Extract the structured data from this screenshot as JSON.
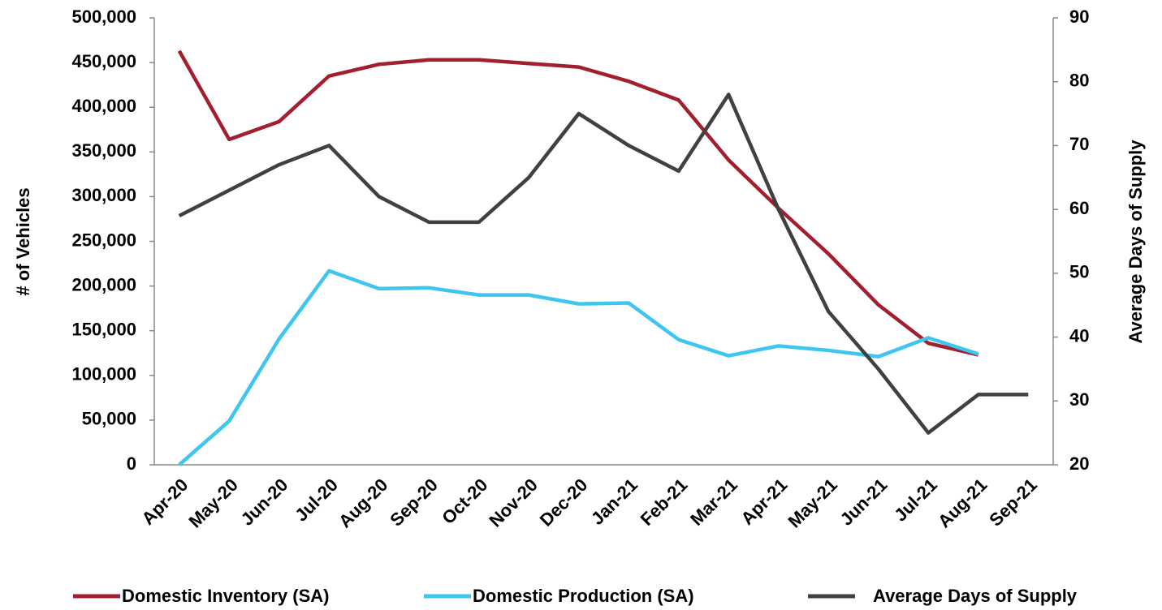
{
  "chart_data": {
    "type": "line",
    "categories": [
      "Apr-20",
      "May-20",
      "Jun-20",
      "Jul-20",
      "Aug-20",
      "Sep-20",
      "Oct-20",
      "Nov-20",
      "Dec-20",
      "Jan-21",
      "Feb-21",
      "Mar-21",
      "Apr-21",
      "May-21",
      "Jun-21",
      "Jul-21",
      "Aug-21",
      "Sep-21"
    ],
    "series": [
      {
        "name": "Domestic Inventory (SA)",
        "color": "#a21f2e",
        "values": [
          463000,
          364000,
          384000,
          435000,
          448000,
          453000,
          453000,
          449000,
          445000,
          429000,
          408000,
          341000,
          287000,
          236000,
          179000,
          136000,
          123000,
          null
        ]
      },
      {
        "name": "Domestic Production (SA)",
        "color": "#3ec6f0",
        "values": [
          0,
          49000,
          141000,
          217000,
          197000,
          198000,
          190000,
          190000,
          180000,
          181000,
          140000,
          122000,
          133000,
          128000,
          121000,
          142000,
          124000,
          null
        ]
      },
      {
        "name": "Average Days of Supply",
        "color": "#404040",
        "axis": "y2",
        "values": [
          59,
          63,
          67,
          70,
          62,
          58,
          58,
          65,
          75,
          70,
          66,
          78,
          60,
          44,
          35,
          25,
          31,
          31
        ]
      }
    ],
    "ylabel": "# of Vehicles",
    "y2label": "Average Days of Supply",
    "ylim": [
      0,
      500000
    ],
    "yticks": [
      0,
      {
        "value": 50000,
        "label": "50,000"
      },
      {
        "value": 100000,
        "label": "100,000"
      },
      {
        "value": 150000,
        "label": "150,000"
      },
      {
        "value": 200000,
        "label": "200,000"
      },
      {
        "value": 250000,
        "label": "250,000"
      },
      {
        "value": 300000,
        "label": "300,000"
      },
      {
        "value": 350000,
        "label": "350,000"
      },
      {
        "value": 400000,
        "label": "400,000"
      },
      {
        "value": 450000,
        "label": "450,000"
      },
      {
        "value": 500000,
        "label": "500,000"
      }
    ],
    "y2lim": [
      20,
      90
    ],
    "y2ticks": [
      20,
      30,
      40,
      50,
      60,
      70,
      80,
      90
    ],
    "grid": false,
    "legend": "bottom"
  }
}
